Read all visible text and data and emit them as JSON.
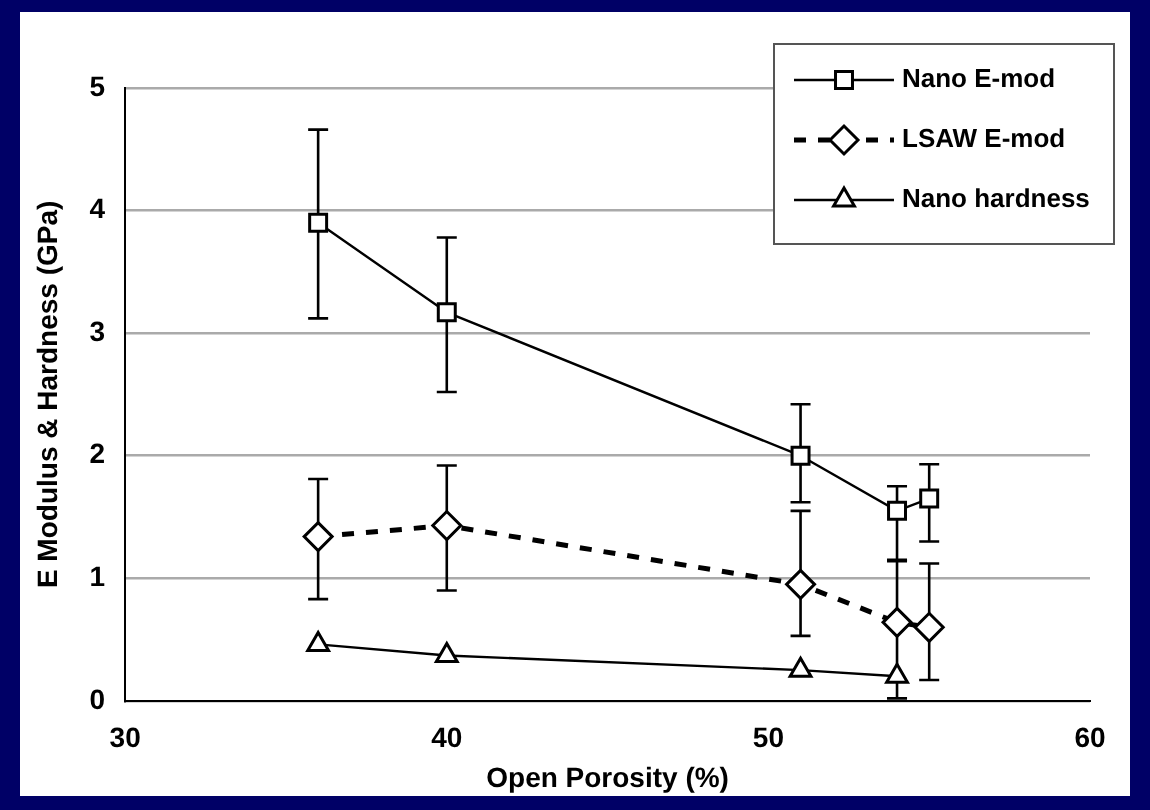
{
  "chart_data": {
    "type": "line",
    "xlabel": "Open Porosity (%)",
    "ylabel": "E Modulus & Hardness (GPa)",
    "xlim": [
      30,
      60
    ],
    "xticks": [
      30,
      40,
      50,
      60
    ],
    "ylim": [
      0,
      5
    ],
    "yticks": [
      0,
      1,
      2,
      3,
      4,
      5
    ],
    "grid": "y",
    "legend": "top right",
    "series": [
      {
        "name": "Nano E-mod",
        "color": "#000000",
        "marker": "square",
        "line_style": "solid",
        "x": [
          36,
          40,
          51,
          54,
          55
        ],
        "values": [
          3.9,
          3.17,
          2.0,
          1.55,
          1.65
        ],
        "errors": [
          [
            3.12,
            4.66
          ],
          [
            2.52,
            3.78
          ],
          [
            1.62,
            2.42
          ],
          [
            1.15,
            1.75
          ],
          [
            1.3,
            1.93
          ]
        ]
      },
      {
        "name": "LSAW E-mod",
        "color": "#000000",
        "marker": "diamond",
        "line_style": "dashed",
        "x": [
          36,
          40,
          51,
          54,
          55
        ],
        "values": [
          1.34,
          1.43,
          0.95,
          0.64,
          0.6
        ],
        "errors": [
          [
            0.83,
            1.81
          ],
          [
            0.9,
            1.92
          ],
          [
            0.53,
            1.55
          ],
          [
            0.02,
            1.14
          ],
          [
            0.17,
            1.12
          ]
        ]
      },
      {
        "name": "Nano hardness",
        "color": "#000000",
        "marker": "triangle",
        "line_style": "solid",
        "x": [
          36,
          40,
          51,
          54
        ],
        "values": [
          0.46,
          0.37,
          0.25,
          0.2
        ]
      }
    ]
  }
}
